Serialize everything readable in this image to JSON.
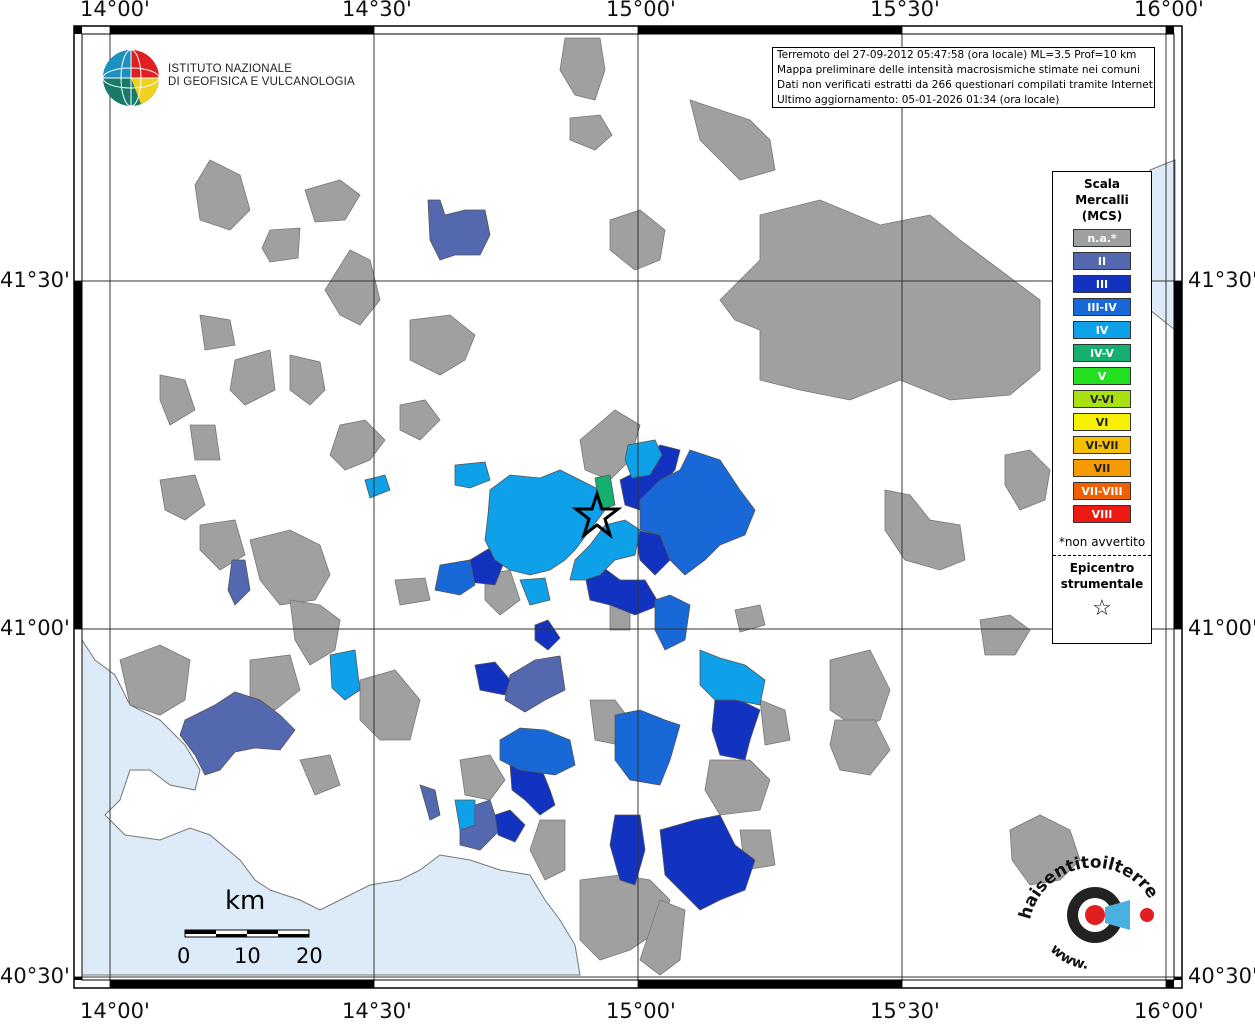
{
  "map": {
    "lon_ticks": [
      "14°00'",
      "14°30'",
      "15°00'",
      "15°30'",
      "16°00'"
    ],
    "lat_ticks": [
      "41°30'",
      "41°00'",
      "40°30'"
    ],
    "colors": {
      "sea": "#dcebf7",
      "na": "#a0a0a0",
      "II": "#5468b0",
      "III": "#1233c0",
      "III-IV": "#1868d8",
      "IV": "#0ea0e8",
      "IV-V": "#15b070"
    }
  },
  "info": {
    "line1": "Terremoto del 27-09-2012 05:47:58 (ora locale) ML=3.5 Prof=10 km",
    "line2": "Mappa preliminare delle intensità macrosismiche stimate nei comuni",
    "line3": "Dati non verificati estratti da 266 questionari compilati tramite Internet.",
    "line4": "Ultimo aggiornamento: 05-01-2026 01:34 (ora locale)"
  },
  "logo": {
    "line1": "ISTITUTO NAZIONALE",
    "line2": "DI GEOFISICA E VULCANOLOGIA"
  },
  "legend": {
    "title_line1": "Scala",
    "title_line2": "Mercalli",
    "title_line3": "(MCS)",
    "items": [
      {
        "label": "n.a.*",
        "color": "#a0a0a0"
      },
      {
        "label": "II",
        "color": "#5468b0"
      },
      {
        "label": "III",
        "color": "#1233c0"
      },
      {
        "label": "III-IV",
        "color": "#1868d8"
      },
      {
        "label": "IV",
        "color": "#0ea0e8"
      },
      {
        "label": "IV-V",
        "color": "#15b070"
      },
      {
        "label": "V",
        "color": "#22e020"
      },
      {
        "label": "V-VI",
        "color": "#a8e010"
      },
      {
        "label": "VI",
        "color": "#f7f000"
      },
      {
        "label": "VI-VII",
        "color": "#f5c000"
      },
      {
        "label": "VII",
        "color": "#f59a00"
      },
      {
        "label": "VII-VIII",
        "color": "#f06000"
      },
      {
        "label": "VIII",
        "color": "#ec1a10"
      }
    ],
    "note": "*non avvertito",
    "epicenter_line1": "Epicentro",
    "epicenter_line2": "strumentale"
  },
  "scalebar": {
    "unit": "km",
    "ticks": [
      "0",
      "10",
      "20"
    ]
  },
  "brand": {
    "text": "haisentitoilterremoto.it",
    "prefix": "www."
  }
}
